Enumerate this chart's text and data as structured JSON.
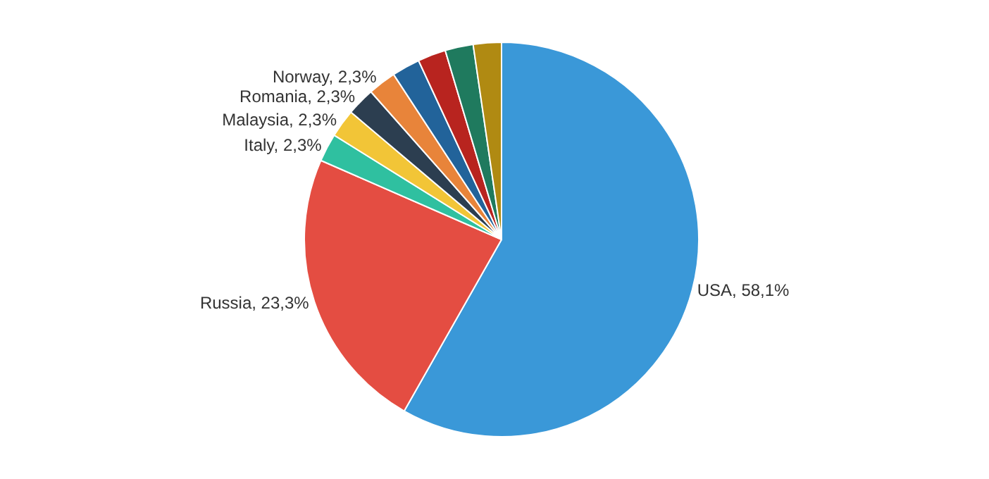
{
  "chart_data": {
    "type": "pie",
    "categories": [
      "USA",
      "Russia",
      "Italy",
      "Malaysia",
      "Romania",
      "Norway",
      null,
      null,
      null,
      null
    ],
    "values": [
      58.1,
      23.3,
      2.3,
      2.3,
      2.3,
      2.3,
      2.3,
      2.3,
      2.3,
      2.3
    ],
    "value_labels": [
      "58,1%",
      "23,3%",
      "2,3%",
      "2,3%",
      "2,3%",
      "2,3%",
      null,
      null,
      null,
      null
    ],
    "colors": [
      "#3a98d8",
      "#e44d42",
      "#2fc0a0",
      "#f2c537",
      "#2c3e50",
      "#e8843a",
      "#22639a",
      "#b8241f",
      "#1f7a5e",
      "#b08a12"
    ],
    "legend": false
  }
}
